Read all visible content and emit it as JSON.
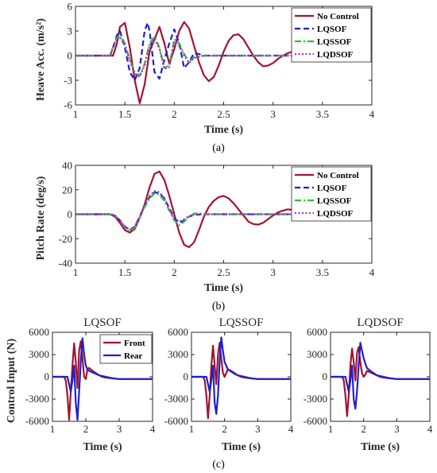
{
  "colors": {
    "no_control": "#A2142F",
    "lqsof": "#1F1FD0",
    "lqssof": "#2BC42B",
    "lqdsof": "#B02CD8",
    "front": "#A2142F",
    "rear": "#1F1FD0",
    "axis": "#262626"
  },
  "chart_data": [
    {
      "id": "a",
      "type": "line",
      "caption": "(a)",
      "xlabel": "Time (s)",
      "ylabel": "Heave Acc. (m/s²)",
      "xlim": [
        1,
        4
      ],
      "ylim": [
        -6,
        6
      ],
      "xticks": [
        1,
        1.5,
        2,
        2.5,
        3,
        3.5,
        4
      ],
      "yticks": [
        -6,
        -3,
        0,
        3,
        6
      ],
      "xtick_labels": [
        "1",
        "1.5",
        "2",
        "2.5",
        "3",
        "3.5",
        "4"
      ],
      "ytick_labels": [
        "-6",
        "-3",
        "0",
        "3",
        "6"
      ],
      "grid": false,
      "legend_position": "top-right",
      "series": [
        {
          "name": "No Control",
          "style": "solid",
          "color_key": "no_control",
          "x": [
            1.0,
            1.38,
            1.42,
            1.45,
            1.5,
            1.55,
            1.6,
            1.65,
            1.7,
            1.75,
            1.8,
            1.85,
            1.9,
            1.95,
            2.0,
            2.05,
            2.1,
            2.15,
            2.2,
            2.25,
            2.3,
            2.35,
            2.4,
            2.45,
            2.5,
            2.55,
            2.6,
            2.65,
            2.7,
            2.75,
            2.8,
            2.85,
            2.9,
            2.95,
            3.0,
            3.05,
            3.1,
            3.15,
            3.2,
            3.25,
            3.3,
            3.4,
            3.5,
            4.0
          ],
          "y": [
            0,
            0,
            1.5,
            3.5,
            4.0,
            1.0,
            -3.0,
            -5.8,
            -3.5,
            0.5,
            2.0,
            3.5,
            1.5,
            -1.0,
            0.8,
            3.0,
            4.1,
            3.3,
            1.2,
            -0.8,
            -2.4,
            -3.1,
            -2.6,
            -1.2,
            0.5,
            1.8,
            2.5,
            2.6,
            2.0,
            1.0,
            0.0,
            -0.8,
            -1.3,
            -1.2,
            -0.9,
            -0.4,
            0.0,
            0.3,
            0.5,
            0.45,
            0.2,
            0.0,
            0.0,
            0.0
          ]
        },
        {
          "name": "LQSOF",
          "style": "dash",
          "color_key": "lqsof",
          "x": [
            1.0,
            1.35,
            1.38,
            1.42,
            1.45,
            1.5,
            1.55,
            1.6,
            1.65,
            1.7,
            1.73,
            1.75,
            1.8,
            1.85,
            1.9,
            1.95,
            2.0,
            2.05,
            2.1,
            2.15,
            2.2,
            2.25,
            2.3,
            2.4,
            4.0
          ],
          "y": [
            0,
            0,
            1.0,
            2.5,
            3.0,
            1.0,
            -2.0,
            -3.0,
            -1.5,
            3.0,
            4.0,
            3.0,
            -2.0,
            -2.8,
            -0.5,
            1.5,
            3.2,
            1.5,
            -1.5,
            -0.8,
            0.3,
            0.2,
            0.0,
            0.0,
            0.0
          ]
        },
        {
          "name": "LQSSOF",
          "style": "dashdot",
          "color_key": "lqssof",
          "x": [
            1.0,
            1.35,
            1.4,
            1.45,
            1.5,
            1.55,
            1.6,
            1.65,
            1.7,
            1.75,
            1.8,
            1.85,
            1.9,
            1.95,
            2.0,
            2.05,
            2.1,
            2.15,
            2.2,
            2.3,
            4.0
          ],
          "y": [
            0,
            0,
            1.8,
            2.6,
            1.5,
            -0.5,
            -2.0,
            -2.4,
            -1.0,
            1.5,
            2.3,
            1.0,
            -1.5,
            -1.2,
            2.0,
            1.5,
            0.2,
            -0.8,
            -0.2,
            0.0,
            0.0
          ]
        },
        {
          "name": "LQDSOF",
          "style": "dot",
          "color_key": "lqdsof",
          "x": [
            1.0,
            1.35,
            1.4,
            1.45,
            1.5,
            1.55,
            1.6,
            1.65,
            1.7,
            1.75,
            1.8,
            1.85,
            1.9,
            1.95,
            2.0,
            2.05,
            2.1,
            2.15,
            2.2,
            2.3,
            4.0
          ],
          "y": [
            0,
            0,
            1.6,
            2.3,
            1.2,
            -0.6,
            -2.2,
            -2.6,
            -1.2,
            1.2,
            2.0,
            0.8,
            -1.6,
            -1.4,
            1.7,
            1.2,
            0.0,
            -0.9,
            -0.3,
            0.0,
            0.0
          ]
        }
      ]
    },
    {
      "id": "b",
      "type": "line",
      "caption": "(b)",
      "xlabel": "Time (s)",
      "ylabel": "Pitch Rate (deg/s)",
      "xlim": [
        1,
        4
      ],
      "ylim": [
        -40,
        40
      ],
      "xticks": [
        1,
        1.5,
        2,
        2.5,
        3,
        3.5,
        4
      ],
      "yticks": [
        -40,
        -20,
        0,
        20,
        40
      ],
      "xtick_labels": [
        "1",
        "1.5",
        "2",
        "2.5",
        "3",
        "3.5",
        "4"
      ],
      "ytick_labels": [
        "-40",
        "-20",
        "0",
        "20",
        "40"
      ],
      "grid": false,
      "legend_position": "top-right",
      "series": [
        {
          "name": "No Control",
          "style": "solid",
          "color_key": "no_control",
          "x": [
            1.0,
            1.35,
            1.4,
            1.45,
            1.5,
            1.55,
            1.6,
            1.65,
            1.7,
            1.75,
            1.8,
            1.85,
            1.9,
            1.95,
            2.0,
            2.05,
            2.1,
            2.15,
            2.2,
            2.25,
            2.3,
            2.35,
            2.4,
            2.45,
            2.5,
            2.55,
            2.6,
            2.65,
            2.7,
            2.75,
            2.8,
            2.85,
            2.9,
            2.95,
            3.0,
            3.05,
            3.1,
            3.15,
            3.2,
            3.25,
            3.3,
            3.4,
            4.0
          ],
          "y": [
            0,
            0,
            -2,
            -7,
            -13,
            -15,
            -12,
            -3,
            8,
            22,
            33,
            35,
            28,
            15,
            0,
            -15,
            -25,
            -27,
            -23,
            -13,
            -2,
            6,
            11,
            14,
            15,
            13,
            9,
            4,
            -1,
            -6,
            -8,
            -8.5,
            -7,
            -4,
            -1,
            1.5,
            3,
            4,
            3.5,
            2,
            1,
            0,
            0
          ]
        },
        {
          "name": "LQSOF",
          "style": "dash",
          "color_key": "lqsof",
          "x": [
            1.0,
            1.35,
            1.4,
            1.45,
            1.5,
            1.55,
            1.6,
            1.65,
            1.7,
            1.75,
            1.8,
            1.85,
            1.9,
            1.95,
            2.0,
            2.05,
            2.1,
            2.15,
            2.2,
            2.3,
            2.4,
            4.0
          ],
          "y": [
            0,
            0,
            -1,
            -5,
            -10,
            -13,
            -10,
            -2,
            7,
            14,
            18,
            17,
            13,
            5,
            -3,
            -7,
            -5,
            -2,
            -0.5,
            0,
            0,
            0
          ]
        },
        {
          "name": "LQSSOF",
          "style": "dashdot",
          "color_key": "lqssof",
          "x": [
            1.0,
            1.35,
            1.4,
            1.45,
            1.5,
            1.55,
            1.6,
            1.65,
            1.7,
            1.75,
            1.8,
            1.85,
            1.9,
            1.95,
            2.0,
            2.05,
            2.1,
            2.15,
            2.2,
            2.25,
            2.3,
            2.4,
            4.0
          ],
          "y": [
            0,
            0,
            -1,
            -5,
            -11,
            -14,
            -11,
            -3,
            6,
            13,
            17,
            16,
            11,
            3,
            -5,
            -9,
            -6,
            -2,
            0.5,
            1,
            0,
            0,
            0
          ]
        },
        {
          "name": "LQDSOF",
          "style": "dot",
          "color_key": "lqdsof",
          "x": [
            1.0,
            1.35,
            1.4,
            1.45,
            1.5,
            1.55,
            1.6,
            1.65,
            1.7,
            1.75,
            1.8,
            1.85,
            1.9,
            1.95,
            2.0,
            2.05,
            2.1,
            2.15,
            2.2,
            2.3,
            2.4,
            4.0
          ],
          "y": [
            0,
            0,
            -1,
            -5,
            -10,
            -13,
            -10,
            -2,
            7,
            15,
            19,
            18,
            13,
            4,
            -4,
            -6,
            -4,
            -1.5,
            -0.3,
            0,
            0,
            0
          ]
        }
      ]
    },
    {
      "id": "c1",
      "type": "line",
      "title": "LQSOF",
      "xlabel": "Time (s)",
      "ylabel": "Control Input (N)",
      "xlim": [
        1,
        4
      ],
      "ylim": [
        -6000,
        6000
      ],
      "xticks": [
        1,
        2,
        3,
        4
      ],
      "yticks": [
        -6000,
        -3000,
        0,
        3000,
        6000
      ],
      "xtick_labels": [
        "1",
        "2",
        "3",
        "4"
      ],
      "ytick_labels": [
        "-6000",
        "-3000",
        "0",
        "3000",
        "6000"
      ],
      "grid": false,
      "legend_position": "top-right",
      "series": [
        {
          "name": "Front",
          "style": "solid",
          "color_key": "front",
          "x": [
            1.0,
            1.35,
            1.4,
            1.45,
            1.5,
            1.55,
            1.6,
            1.65,
            1.7,
            1.75,
            1.8,
            1.85,
            1.9,
            1.95,
            2.0,
            2.05,
            2.1,
            2.2,
            2.3,
            2.4,
            2.6,
            2.8,
            3.0,
            4.0
          ],
          "y": [
            0,
            0,
            -500,
            -2500,
            -5800,
            -2000,
            1500,
            4500,
            2000,
            -1500,
            3500,
            4800,
            2500,
            0,
            -300,
            1000,
            1200,
            800,
            500,
            200,
            0,
            -200,
            -300,
            -300
          ]
        },
        {
          "name": "Rear",
          "style": "solid",
          "color_key": "rear",
          "x": [
            1.0,
            1.45,
            1.5,
            1.55,
            1.6,
            1.65,
            1.7,
            1.75,
            1.8,
            1.85,
            1.9,
            1.95,
            2.0,
            2.05,
            2.1,
            2.2,
            2.3,
            2.4,
            2.5,
            2.6,
            2.8,
            3.0,
            3.5,
            4.0
          ],
          "y": [
            0,
            0,
            -1000,
            -2000,
            -500,
            1500,
            -3500,
            -5800,
            -2000,
            2000,
            5200,
            3000,
            1500,
            1000,
            800,
            600,
            400,
            200,
            0,
            -100,
            -200,
            -300,
            -300,
            -300
          ]
        }
      ]
    },
    {
      "id": "c2",
      "type": "line",
      "title": "LQSSOF",
      "xlabel": "Time (s)",
      "xlim": [
        1,
        4
      ],
      "ylim": [
        -6000,
        6000
      ],
      "xticks": [
        1,
        2,
        3,
        4
      ],
      "yticks": [
        -6000,
        -3000,
        0,
        3000,
        6000
      ],
      "xtick_labels": [
        "1",
        "2",
        "3",
        "4"
      ],
      "ytick_labels": [
        "-6000",
        "-3000",
        "0",
        "3000",
        "6000"
      ],
      "grid": false,
      "series": [
        {
          "name": "Front",
          "style": "solid",
          "color_key": "front",
          "x": [
            1.0,
            1.35,
            1.4,
            1.45,
            1.5,
            1.55,
            1.6,
            1.65,
            1.7,
            1.75,
            1.8,
            1.85,
            1.9,
            1.95,
            2.0,
            2.05,
            2.1,
            2.2,
            2.3,
            2.4,
            2.6,
            2.8,
            3.0,
            4.0
          ],
          "y": [
            0,
            0,
            -500,
            -2500,
            -5600,
            -2500,
            1500,
            4200,
            1500,
            -1000,
            3000,
            4600,
            2500,
            500,
            0,
            500,
            1000,
            800,
            500,
            200,
            0,
            -200,
            -300,
            -300
          ]
        },
        {
          "name": "Rear",
          "style": "solid",
          "color_key": "rear",
          "x": [
            1.0,
            1.45,
            1.5,
            1.55,
            1.6,
            1.65,
            1.7,
            1.75,
            1.8,
            1.85,
            1.9,
            1.95,
            2.0,
            2.05,
            2.1,
            2.2,
            2.3,
            2.4,
            2.5,
            2.6,
            2.8,
            3.0,
            3.5,
            4.0
          ],
          "y": [
            0,
            0,
            -1000,
            -2000,
            -500,
            1500,
            -3500,
            -5000,
            -2500,
            2000,
            5300,
            3500,
            2000,
            1500,
            1000,
            700,
            400,
            200,
            0,
            -100,
            -200,
            -300,
            -300,
            -300
          ]
        }
      ]
    },
    {
      "id": "c3",
      "type": "line",
      "title": "LQDSOF",
      "xlabel": "Time (s)",
      "xlim": [
        1,
        4
      ],
      "ylim": [
        -6000,
        6000
      ],
      "xticks": [
        1,
        2,
        3,
        4
      ],
      "yticks": [
        -6000,
        -3000,
        0,
        3000,
        6000
      ],
      "xtick_labels": [
        "1",
        "2",
        "3",
        "4"
      ],
      "ytick_labels": [
        "-6000",
        "-3000",
        "0",
        "3000",
        "6000"
      ],
      "grid": false,
      "series": [
        {
          "name": "Front",
          "style": "solid",
          "color_key": "front",
          "x": [
            1.0,
            1.35,
            1.4,
            1.45,
            1.5,
            1.55,
            1.6,
            1.65,
            1.7,
            1.75,
            1.8,
            1.85,
            1.9,
            1.95,
            2.0,
            2.05,
            2.1,
            2.2,
            2.3,
            2.4,
            2.6,
            2.8,
            3.0,
            4.0
          ],
          "y": [
            0,
            0,
            -500,
            -2500,
            -5300,
            -2500,
            1500,
            3800,
            2000,
            -500,
            3200,
            4000,
            2000,
            500,
            0,
            300,
            800,
            600,
            400,
            200,
            0,
            -200,
            -300,
            -300
          ]
        },
        {
          "name": "Rear",
          "style": "solid",
          "color_key": "rear",
          "x": [
            1.0,
            1.45,
            1.5,
            1.55,
            1.6,
            1.65,
            1.7,
            1.75,
            1.8,
            1.85,
            1.9,
            1.95,
            2.0,
            2.05,
            2.1,
            2.2,
            2.3,
            2.4,
            2.5,
            2.6,
            2.8,
            3.0,
            3.5,
            4.0
          ],
          "y": [
            0,
            0,
            -1000,
            -2000,
            -500,
            1500,
            -3000,
            -4300,
            -2000,
            1500,
            4600,
            3500,
            2500,
            1800,
            1200,
            800,
            500,
            200,
            0,
            -100,
            -200,
            -300,
            -300,
            -300
          ]
        }
      ]
    }
  ],
  "caption_c": "(c)"
}
